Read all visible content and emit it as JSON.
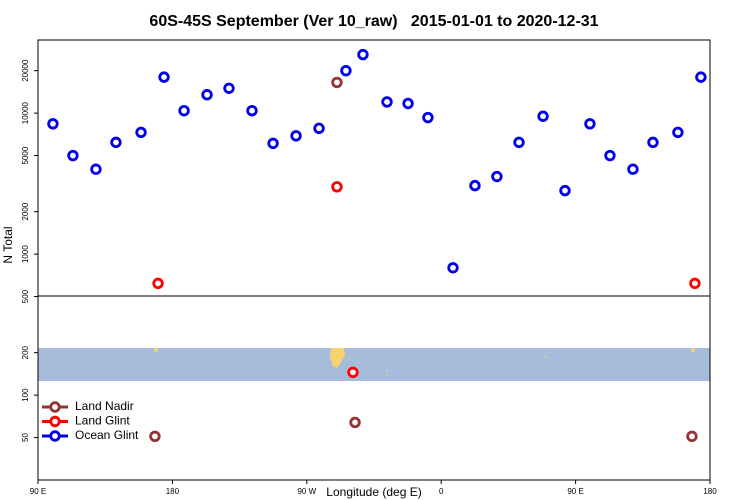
{
  "chart_data": {
    "type": "scatter",
    "title": "60S-45S September (Ver 10_raw)   2015-01-01 to 2020-12-31",
    "x_label": "Longitude (deg E)",
    "y_label": "N Total",
    "log_y": true,
    "xlim": [
      90,
      540
    ],
    "ylim": [
      25,
      33000
    ],
    "xticks": [
      {
        "value": 90,
        "label": "90 E"
      },
      {
        "value": 180,
        "label": "180"
      },
      {
        "value": 270,
        "label": "90 W"
      },
      {
        "value": 360,
        "label": "0"
      },
      {
        "value": 450,
        "label": "90 E"
      },
      {
        "value": 540,
        "label": "180"
      }
    ],
    "yticks": [
      50,
      100,
      200,
      500,
      1000,
      2000,
      5000,
      10000,
      20000
    ],
    "legend": "bottom-left",
    "series": [
      {
        "name": "Land Nadir",
        "color": "#993333",
        "x": [
          168.3,
          290.2,
          302.3,
          527.9
        ],
        "values": [
          51,
          16500,
          64,
          51
        ]
      },
      {
        "name": "Land Glint",
        "color": "#ff0000",
        "x": [
          170.4,
          290.2,
          300.9,
          529.9
        ],
        "values": [
          620,
          3000,
          145,
          620
        ]
      },
      {
        "name": "Ocean Glint",
        "color": "#0000ee",
        "x": [
          100.0,
          113.4,
          128.8,
          142.2,
          159.0,
          174.4,
          187.8,
          203.2,
          217.9,
          233.3,
          247.4,
          262.8,
          278.2,
          296.2,
          307.6,
          323.7,
          337.8,
          351.1,
          367.9,
          382.6,
          397.3,
          412.1,
          428.2,
          442.9,
          459.6,
          473.0,
          488.4,
          501.8,
          518.5,
          533.9
        ],
        "values": [
          8400,
          5000,
          4000,
          6200,
          7300,
          18000,
          10400,
          13500,
          15000,
          10400,
          6100,
          6900,
          7800,
          20000,
          26000,
          12000,
          11700,
          9300,
          800,
          3060,
          3550,
          6200,
          9500,
          2820,
          8400,
          5000,
          4000,
          6200,
          7300,
          18000
        ]
      }
    ]
  }
}
